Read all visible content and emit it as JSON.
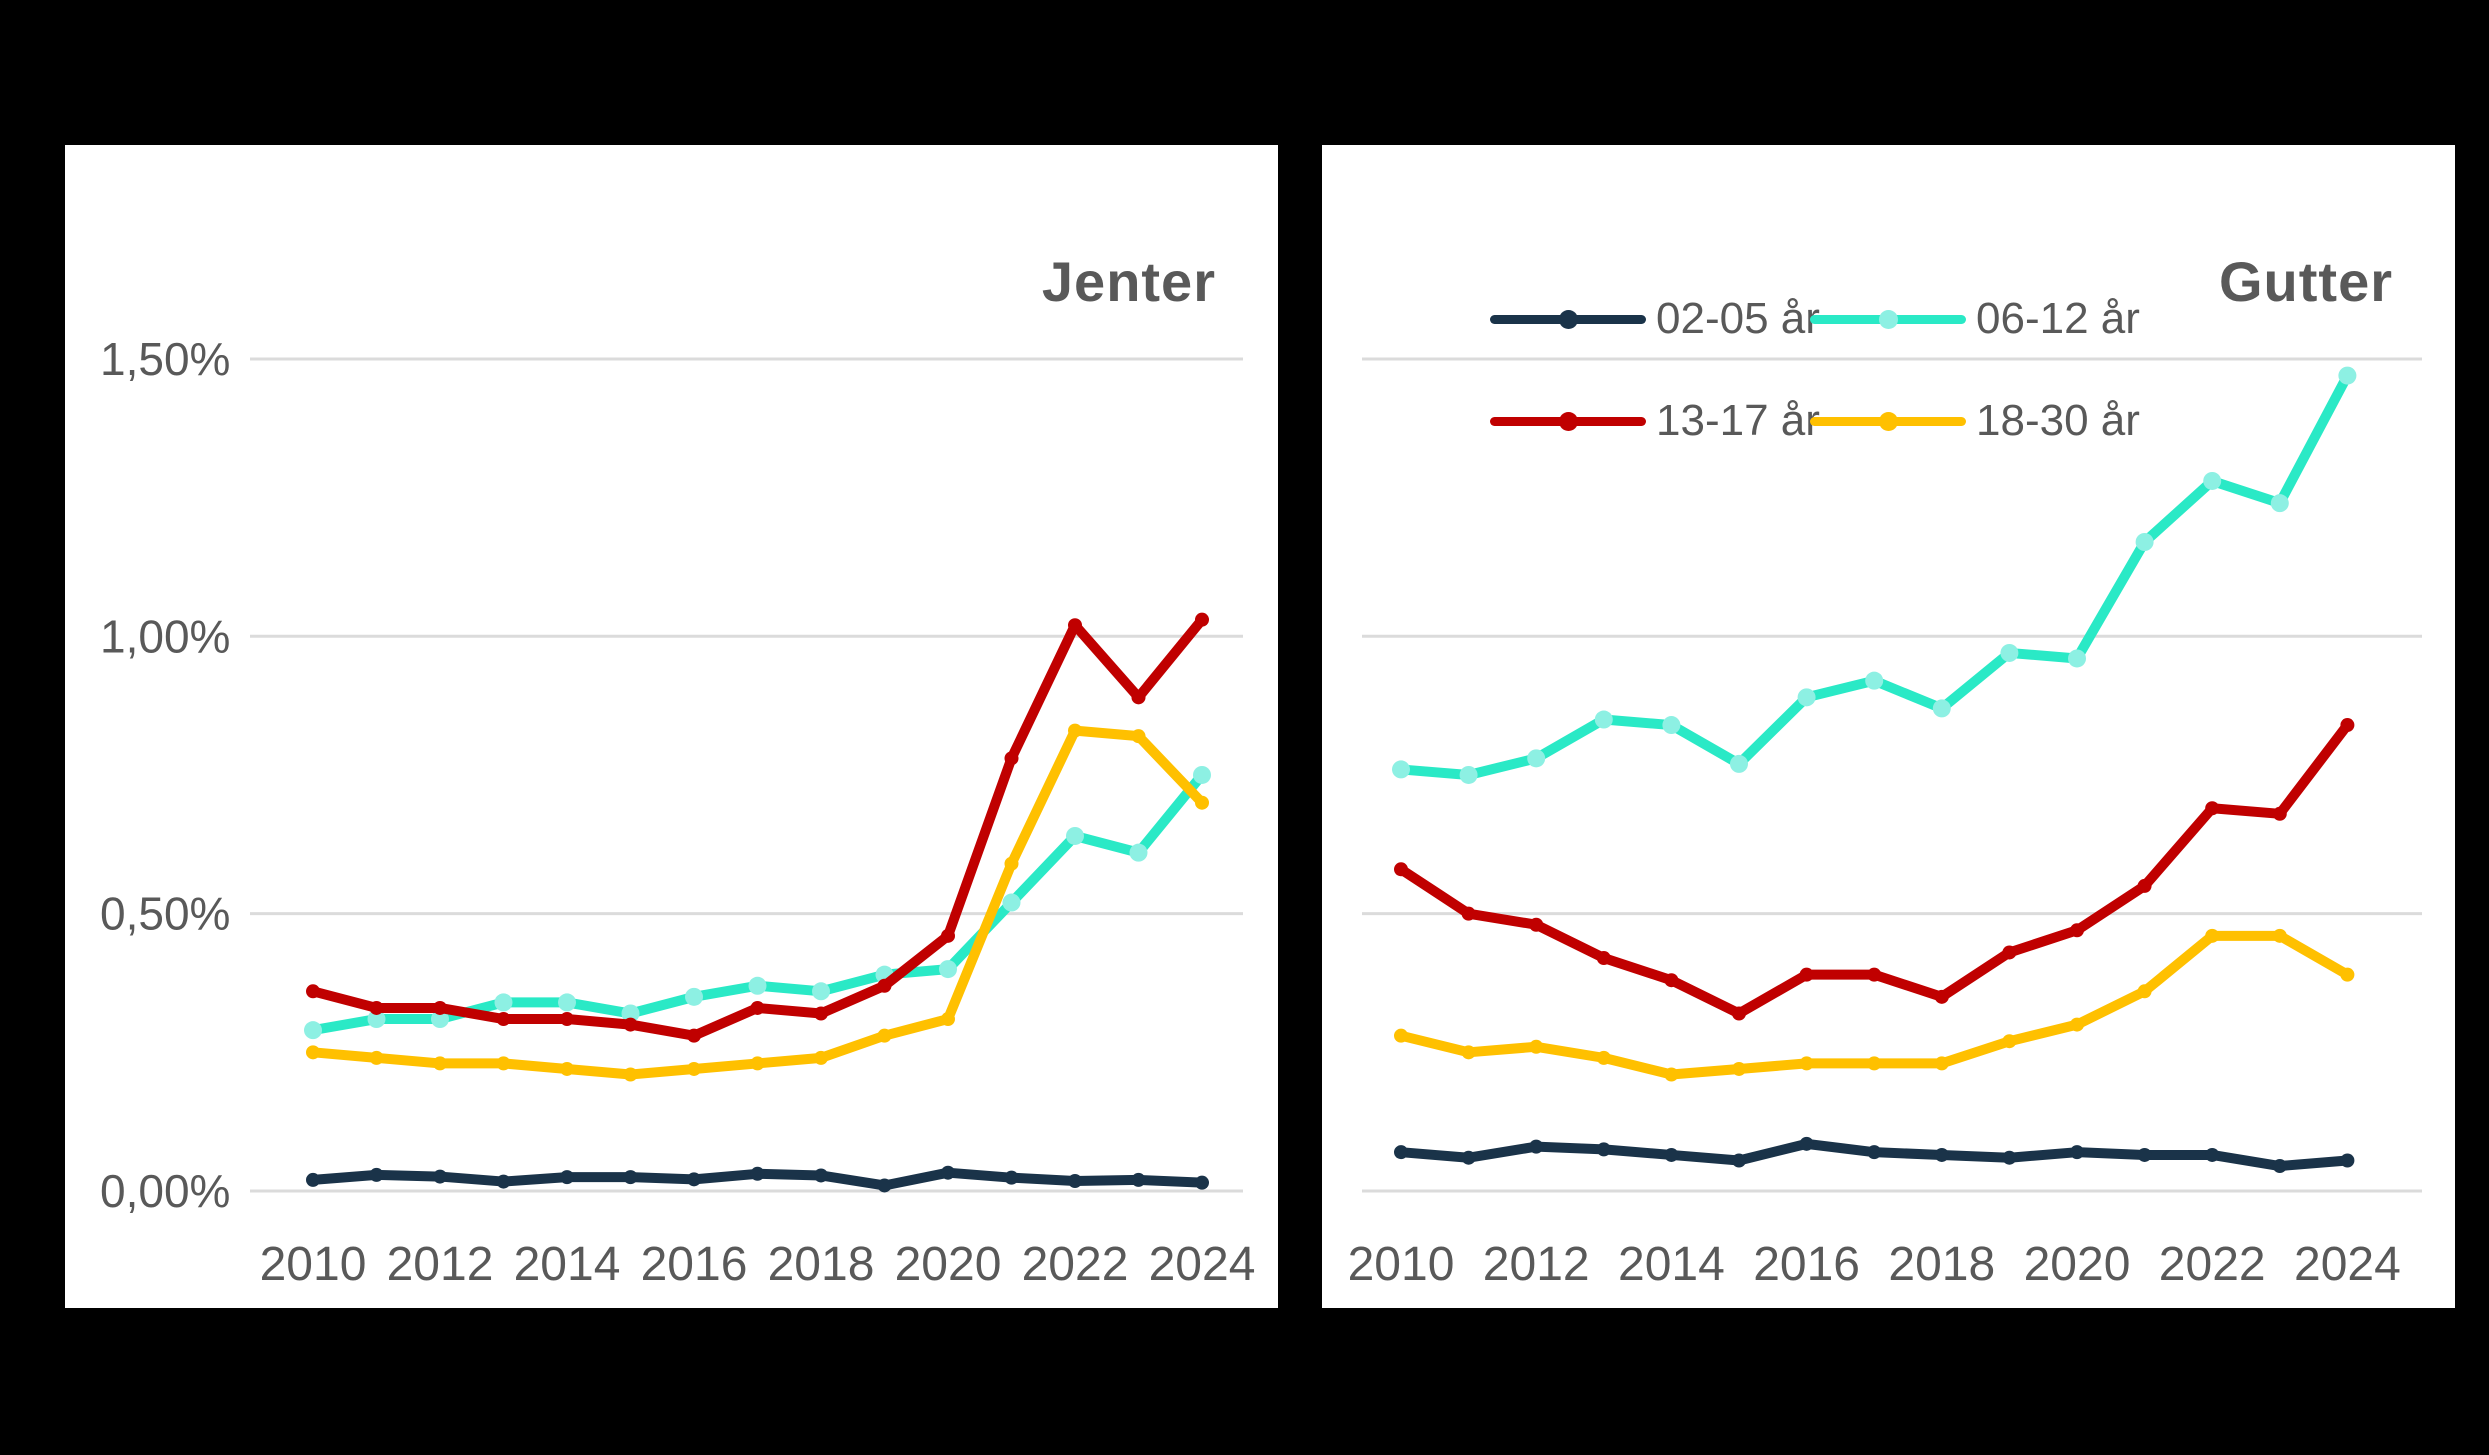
{
  "page": {
    "background": "#000000",
    "card_background": "#ffffff",
    "text_color": "#595959",
    "grid_color": "#dbdbdb"
  },
  "chart_data": [
    {
      "type": "line",
      "id": "jenter",
      "title": "Jenter",
      "x": [
        2010,
        2011,
        2012,
        2013,
        2014,
        2015,
        2016,
        2017,
        2018,
        2019,
        2020,
        2021,
        2022,
        2023,
        2024
      ],
      "x_tick_labels": [
        "2010",
        "2012",
        "2014",
        "2016",
        "2018",
        "2020",
        "2022",
        "2024"
      ],
      "y_ticks": [
        {
          "value": 1.5,
          "label": "1,50%"
        },
        {
          "value": 1.0,
          "label": "1,00%"
        },
        {
          "value": 0.5,
          "label": "0,50%"
        },
        {
          "value": 0.0,
          "label": "0,00%"
        }
      ],
      "show_y_labels": true,
      "ylim": [
        0,
        1.65
      ],
      "gridline_values": [
        0,
        0.5,
        1.0,
        1.5
      ],
      "grid": "horizontal",
      "legend_visible": false,
      "series": [
        {
          "name": "02-05 år",
          "color": "#1a3349",
          "marker_color": "#1a3349",
          "values": [
            0.02,
            0.029,
            0.026,
            0.017,
            0.025,
            0.025,
            0.021,
            0.031,
            0.028,
            0.01,
            0.033,
            0.024,
            0.018,
            0.02,
            0.015
          ]
        },
        {
          "name": "06-12 år",
          "color": "#2ae9c6",
          "marker_color": "#8df0e3",
          "values": [
            0.29,
            0.31,
            0.31,
            0.34,
            0.34,
            0.32,
            0.35,
            0.37,
            0.36,
            0.39,
            0.4,
            0.52,
            0.64,
            0.61,
            0.75
          ]
        },
        {
          "name": "13-17 år",
          "color": "#c00000",
          "marker_color": "#c00000",
          "values": [
            0.36,
            0.33,
            0.33,
            0.31,
            0.31,
            0.3,
            0.28,
            0.33,
            0.32,
            0.37,
            0.46,
            0.78,
            1.02,
            0.89,
            1.03
          ]
        },
        {
          "name": "18-30 år",
          "color": "#ffc000",
          "marker_color": "#ffc000",
          "values": [
            0.25,
            0.24,
            0.23,
            0.23,
            0.22,
            0.21,
            0.22,
            0.23,
            0.24,
            0.28,
            0.31,
            0.59,
            0.83,
            0.82,
            0.7
          ]
        }
      ]
    },
    {
      "type": "line",
      "id": "gutter",
      "title": "Gutter",
      "x": [
        2010,
        2011,
        2012,
        2013,
        2014,
        2015,
        2016,
        2017,
        2018,
        2019,
        2020,
        2021,
        2022,
        2023,
        2024
      ],
      "x_tick_labels": [
        "2010",
        "2012",
        "2014",
        "2016",
        "2018",
        "2020",
        "2022",
        "2024"
      ],
      "show_y_labels": false,
      "ylim": [
        0,
        1.65
      ],
      "gridline_values": [
        0,
        0.5,
        1.0,
        1.5
      ],
      "grid": "horizontal",
      "legend_visible": true,
      "legend_position": "top-left",
      "legend_rows": [
        [
          "02-05 år",
          "06-12 år"
        ],
        [
          "13-17 år",
          "18-30 år"
        ]
      ],
      "series": [
        {
          "name": "02-05 år",
          "color": "#1a3349",
          "marker_color": "#1a3349",
          "values": [
            0.07,
            0.06,
            0.08,
            0.075,
            0.065,
            0.055,
            0.085,
            0.07,
            0.065,
            0.06,
            0.07,
            0.065,
            0.065,
            0.045,
            0.055
          ]
        },
        {
          "name": "06-12 år",
          "color": "#2ae9c6",
          "marker_color": "#8df0e3",
          "values": [
            0.76,
            0.75,
            0.78,
            0.85,
            0.84,
            0.77,
            0.89,
            0.92,
            0.87,
            0.97,
            0.96,
            1.17,
            1.28,
            1.24,
            1.47
          ]
        },
        {
          "name": "13-17 år",
          "color": "#c00000",
          "marker_color": "#c00000",
          "values": [
            0.58,
            0.5,
            0.48,
            0.42,
            0.38,
            0.32,
            0.39,
            0.39,
            0.35,
            0.43,
            0.47,
            0.55,
            0.69,
            0.68,
            0.84
          ]
        },
        {
          "name": "18-30 år",
          "color": "#ffc000",
          "marker_color": "#ffc000",
          "values": [
            0.28,
            0.25,
            0.26,
            0.24,
            0.21,
            0.22,
            0.23,
            0.23,
            0.23,
            0.27,
            0.3,
            0.36,
            0.46,
            0.46,
            0.39
          ]
        }
      ]
    }
  ]
}
